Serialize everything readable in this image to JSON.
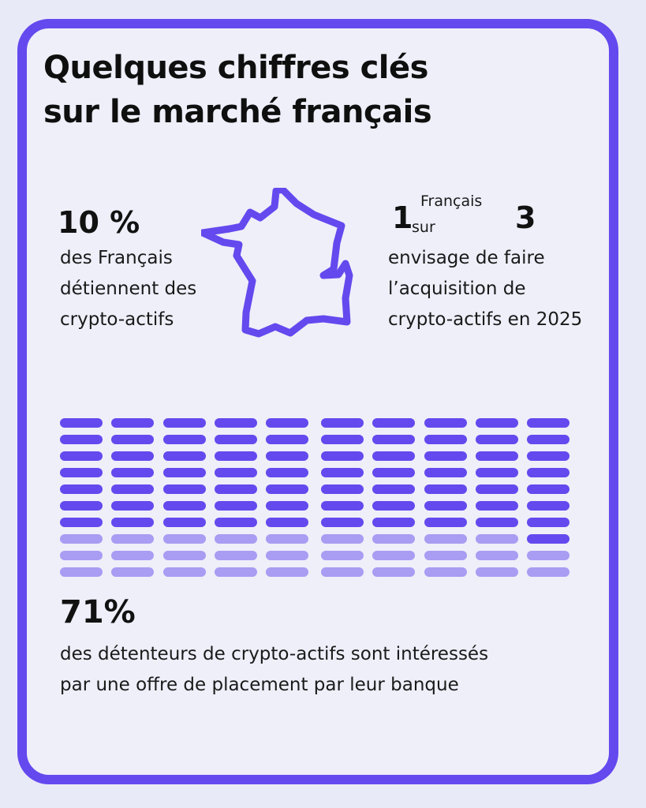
{
  "title": [
    "Quelques chiffres clés",
    "sur le marché français"
  ],
  "stat1": {
    "value": "10 %",
    "lines": [
      "des Français",
      "détiennent des",
      "crypto-actifs"
    ]
  },
  "stat2": {
    "num": "1",
    "small1": "Français",
    "small2": "sur",
    "den": "3",
    "lines": [
      "envisage de faire",
      "l’acquisition de",
      "crypto-actifs en 2025"
    ]
  },
  "stat3": {
    "value": "71%",
    "lines": [
      "des détenteurs de crypto-actifs sont intéressés",
      "par une offre de placement par leur banque"
    ],
    "fraction": 0.71
  },
  "colors": {
    "accent": "#6449ee",
    "filled": "#6449ee",
    "empty": "#a89cf3",
    "map": "#6449ee"
  },
  "icons": {
    "map": "france-map-icon"
  }
}
